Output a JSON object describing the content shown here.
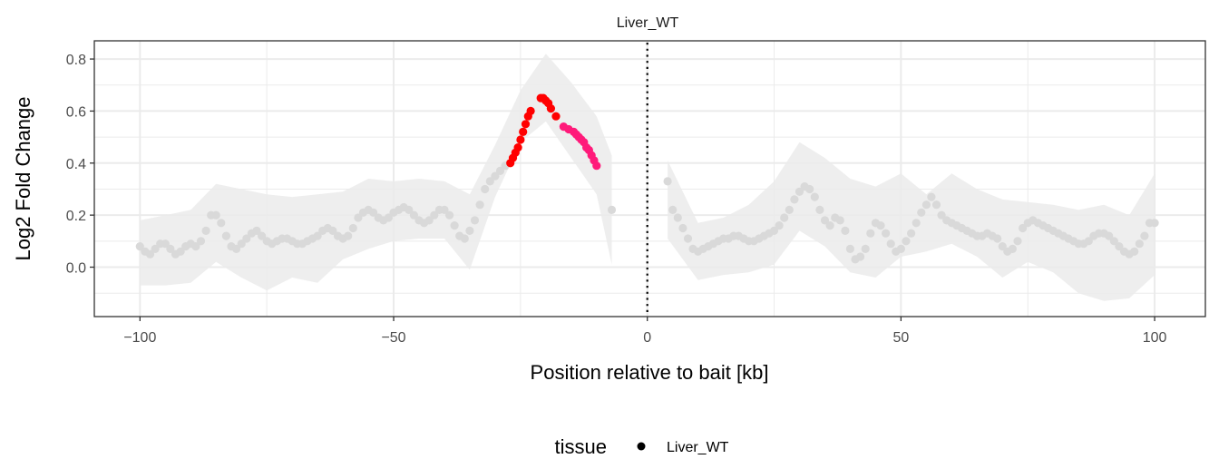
{
  "chart_data": {
    "type": "scatter",
    "facet_title": "Liver_WT",
    "xlabel": "Position relative to bait [kb]",
    "ylabel": "Log2 Fold Change",
    "xlim": [
      -109,
      110
    ],
    "ylim": [
      -0.19,
      0.87
    ],
    "x_ticks": [
      -100,
      -50,
      0,
      50,
      100
    ],
    "x_tick_labels": [
      "−100",
      "−50",
      "0",
      "50",
      "100"
    ],
    "y_ticks": [
      0.0,
      0.2,
      0.4,
      0.6,
      0.8
    ],
    "y_tick_labels": [
      "0.0",
      "0.2",
      "0.4",
      "0.6",
      "0.8"
    ],
    "grid": true,
    "bait_line_x": 0,
    "legend": {
      "title": "tissue",
      "entries": [
        "Liver_WT"
      ],
      "position": "bottom"
    },
    "colors": {
      "background_point": "#d9d9d9",
      "ribbon": "#ebebeb",
      "highlight_red": "#ff0000",
      "highlight_pink": "#ff1a7a",
      "grid": "#ebebeb",
      "panel_border": "#333333"
    },
    "ribbon": {
      "x": [
        -100,
        -95,
        -90,
        -85,
        -80,
        -75,
        -70,
        -65,
        -60,
        -55,
        -50,
        -45,
        -40,
        -35,
        -30,
        -25,
        -20,
        -15,
        -10,
        -7,
        4,
        10,
        15,
        20,
        25,
        30,
        35,
        40,
        45,
        50,
        55,
        60,
        65,
        70,
        75,
        80,
        85,
        90,
        95,
        100
      ],
      "upper": [
        0.18,
        0.2,
        0.22,
        0.32,
        0.3,
        0.28,
        0.27,
        0.28,
        0.29,
        0.34,
        0.33,
        0.34,
        0.33,
        0.28,
        0.47,
        0.68,
        0.82,
        0.71,
        0.58,
        0.43,
        0.41,
        0.17,
        0.19,
        0.24,
        0.33,
        0.48,
        0.42,
        0.34,
        0.31,
        0.36,
        0.28,
        0.36,
        0.3,
        0.26,
        0.25,
        0.24,
        0.22,
        0.24,
        0.2,
        0.36
      ],
      "lower": [
        -0.07,
        -0.07,
        -0.06,
        0.02,
        -0.04,
        -0.09,
        -0.04,
        -0.06,
        0.03,
        0.07,
        0.1,
        0.11,
        0.11,
        -0.01,
        0.27,
        0.48,
        0.56,
        0.42,
        0.28,
        0.01,
        0.11,
        -0.05,
        -0.03,
        -0.02,
        0.01,
        0.14,
        0.08,
        -0.02,
        -0.04,
        0.04,
        0.06,
        0.09,
        0.04,
        -0.04,
        0.02,
        -0.02,
        -0.1,
        -0.13,
        -0.12,
        -0.03
      ]
    },
    "series": [
      {
        "color": "#d9d9d9",
        "x": [
          -100,
          -99,
          -98,
          -97,
          -96,
          -95,
          -94,
          -93,
          -92,
          -91,
          -90,
          -89,
          -88,
          -87,
          -86,
          -85,
          -84,
          -83,
          -82,
          -81,
          -80,
          -79,
          -78,
          -77,
          -76,
          -75,
          -74,
          -73,
          -72,
          -71,
          -70,
          -69,
          -68,
          -67,
          -66,
          -65,
          -64,
          -63,
          -62,
          -61,
          -60,
          -59,
          -58,
          -57,
          -56,
          -55,
          -54,
          -53,
          -52,
          -51,
          -50,
          -49,
          -48,
          -47,
          -46,
          -45,
          -44,
          -43,
          -42,
          -41,
          -40,
          -39,
          -38,
          -37,
          -36,
          -35,
          -34,
          -33,
          -32,
          -31,
          -30,
          -29,
          -28
        ],
        "y": [
          0.08,
          0.06,
          0.05,
          0.07,
          0.09,
          0.09,
          0.07,
          0.05,
          0.06,
          0.08,
          0.09,
          0.08,
          0.1,
          0.14,
          0.2,
          0.2,
          0.17,
          0.12,
          0.08,
          0.07,
          0.09,
          0.11,
          0.13,
          0.14,
          0.12,
          0.1,
          0.09,
          0.1,
          0.11,
          0.11,
          0.1,
          0.09,
          0.09,
          0.1,
          0.11,
          0.12,
          0.14,
          0.15,
          0.14,
          0.12,
          0.11,
          0.12,
          0.15,
          0.19,
          0.21,
          0.22,
          0.21,
          0.19,
          0.18,
          0.19,
          0.21,
          0.22,
          0.23,
          0.22,
          0.2,
          0.18,
          0.17,
          0.18,
          0.2,
          0.22,
          0.22,
          0.2,
          0.16,
          0.12,
          0.11,
          0.14,
          0.18,
          0.24,
          0.3,
          0.33,
          0.35,
          0.37,
          0.39
        ]
      },
      {
        "color": "#ff0000",
        "x": [
          -27,
          -26.5,
          -26,
          -25.5,
          -25,
          -24.5,
          -24,
          -23.5,
          -23,
          -21,
          -20.5,
          -20,
          -19.5,
          -19,
          -18
        ],
        "y": [
          0.4,
          0.42,
          0.44,
          0.46,
          0.49,
          0.52,
          0.55,
          0.58,
          0.6,
          0.65,
          0.65,
          0.64,
          0.63,
          0.61,
          0.58
        ]
      },
      {
        "color": "#ff1a7a",
        "x": [
          -16.5,
          -15.5,
          -14.5,
          -14,
          -13.5,
          -13,
          -12.5,
          -12,
          -11.5,
          -11,
          -10.5,
          -10
        ],
        "y": [
          0.54,
          0.53,
          0.52,
          0.51,
          0.5,
          0.49,
          0.48,
          0.46,
          0.45,
          0.43,
          0.41,
          0.39
        ]
      },
      {
        "color": "#d9d9d9",
        "x": [
          -7,
          4,
          5,
          6,
          7,
          8,
          9,
          10,
          11,
          12,
          13,
          14,
          15,
          16,
          17,
          18,
          19,
          20,
          21,
          22,
          23,
          24,
          25,
          26,
          27,
          28,
          29,
          30,
          31,
          32,
          33,
          34,
          35,
          36,
          37,
          38,
          39,
          40,
          41,
          42,
          43,
          44,
          45,
          46,
          47,
          48,
          49,
          50,
          51,
          52,
          53,
          54,
          55,
          56,
          57,
          58,
          59,
          60,
          61,
          62,
          63,
          64,
          65,
          66,
          67,
          68,
          69,
          70,
          71,
          72,
          73,
          74,
          75,
          76,
          77,
          78,
          79,
          80,
          81,
          82,
          83,
          84,
          85,
          86,
          87,
          88,
          89,
          90,
          91,
          92,
          93,
          94,
          95,
          96,
          97,
          98,
          99,
          100
        ],
        "y": [
          0.22,
          0.33,
          0.22,
          0.19,
          0.15,
          0.11,
          0.07,
          0.06,
          0.07,
          0.08,
          0.09,
          0.1,
          0.11,
          0.11,
          0.12,
          0.12,
          0.11,
          0.1,
          0.1,
          0.11,
          0.12,
          0.13,
          0.14,
          0.16,
          0.19,
          0.22,
          0.26,
          0.29,
          0.31,
          0.3,
          0.27,
          0.22,
          0.18,
          0.16,
          0.19,
          0.18,
          0.14,
          0.07,
          0.03,
          0.04,
          0.07,
          0.13,
          0.17,
          0.16,
          0.13,
          0.09,
          0.06,
          0.07,
          0.1,
          0.13,
          0.17,
          0.21,
          0.24,
          0.27,
          0.24,
          0.2,
          0.18,
          0.17,
          0.16,
          0.15,
          0.14,
          0.13,
          0.12,
          0.12,
          0.13,
          0.12,
          0.11,
          0.08,
          0.06,
          0.07,
          0.1,
          0.15,
          0.17,
          0.18,
          0.17,
          0.16,
          0.15,
          0.14,
          0.13,
          0.12,
          0.11,
          0.1,
          0.09,
          0.09,
          0.1,
          0.12,
          0.13,
          0.13,
          0.12,
          0.1,
          0.08,
          0.06,
          0.05,
          0.06,
          0.09,
          0.12,
          0.17,
          0.17
        ]
      }
    ]
  }
}
